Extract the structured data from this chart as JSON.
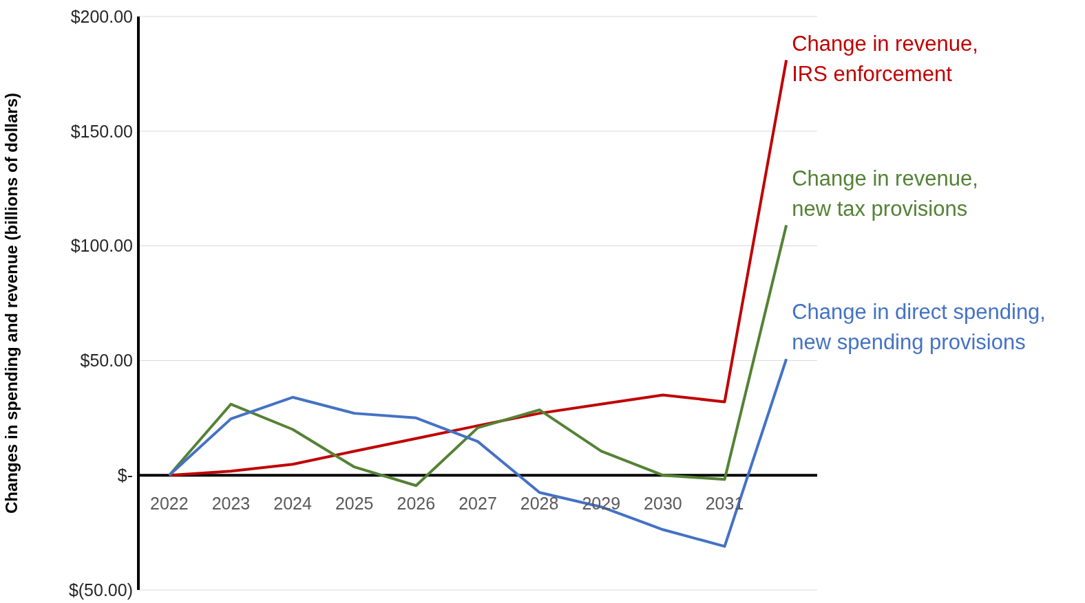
{
  "chart_data": {
    "type": "line",
    "ylabel": "Changes in spending and revenue (billions of dollars)",
    "categories": [
      "2022",
      "2023",
      "2024",
      "2025",
      "2026",
      "2027",
      "2028",
      "2029",
      "2030",
      "2031",
      null
    ],
    "series": [
      {
        "name": "Change in revenue, IRS enforcement",
        "color": "#c00000",
        "values": [
          0,
          1.8,
          4.8,
          10.5,
          16,
          21.6,
          27,
          31,
          35,
          32,
          181
        ]
      },
      {
        "name": "Change in revenue, new tax provisions",
        "color": "#548235",
        "values": [
          0,
          31,
          20,
          3.6,
          -4.5,
          20.7,
          28.5,
          10.5,
          0,
          -1.8,
          109
        ]
      },
      {
        "name": "Change in direct spending, new spending provisions",
        "color": "#4472c4",
        "values": [
          0,
          24.6,
          34,
          27,
          25,
          14.7,
          -7.5,
          -13.8,
          -23.7,
          -31,
          50.7
        ]
      }
    ],
    "ylim": [
      -50,
      200
    ],
    "yticks": [
      {
        "value": -50,
        "label": "$(50.00)"
      },
      {
        "value": 0,
        "label": "$-"
      },
      {
        "value": 50,
        "label": "$50.00"
      },
      {
        "value": 100,
        "label": "$100.00"
      },
      {
        "value": 150,
        "label": "$150.00"
      },
      {
        "value": 200,
        "label": "$200.00"
      }
    ],
    "grid": "y",
    "marker": "none",
    "line_style": "solid"
  }
}
